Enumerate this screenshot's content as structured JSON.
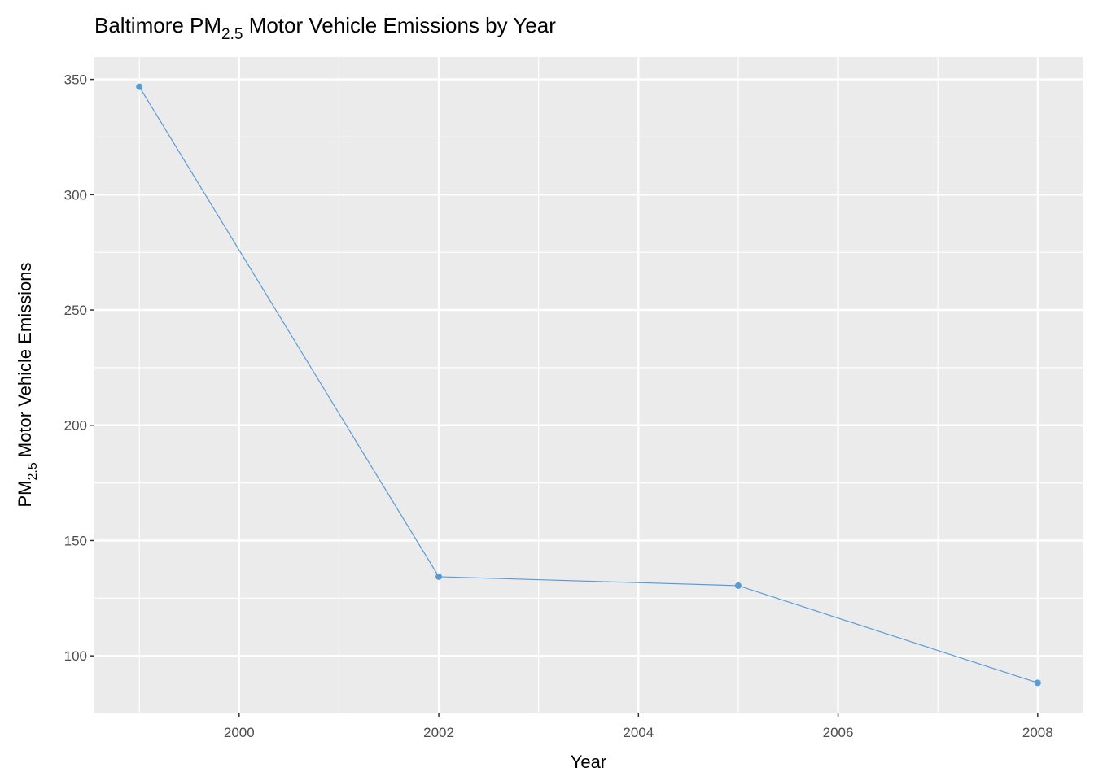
{
  "chart_data": {
    "type": "line",
    "title": {
      "prefix": "Baltimore  PM",
      "subscript": "2.5",
      "suffix": " Motor Vehicle Emissions by Year"
    },
    "xlabel": "Year",
    "ylabel": {
      "prefix": "PM",
      "subscript": "2.5",
      "suffix": " Motor Vehicle Emissions"
    },
    "x": [
      1999,
      2002,
      2005,
      2008
    ],
    "series": [
      {
        "values": [
          346.82,
          134.31,
          130.43,
          88.28
        ]
      }
    ],
    "xlim": [
      1998.55,
      2008.45
    ],
    "ylim": [
      75.36,
      359.74
    ],
    "xticks": [
      2000,
      2002,
      2004,
      2006,
      2008
    ],
    "xtick_labels": [
      "2000",
      "2002",
      "2004",
      "2006",
      "2008"
    ],
    "yticks": [
      100,
      150,
      200,
      250,
      300,
      350
    ],
    "ytick_labels": [
      "100",
      "150",
      "200",
      "250",
      "300",
      "350"
    ],
    "grid": true,
    "colors": {
      "line": "#5b9bd5",
      "panel": "#ebebeb",
      "grid": "#ffffff"
    }
  }
}
